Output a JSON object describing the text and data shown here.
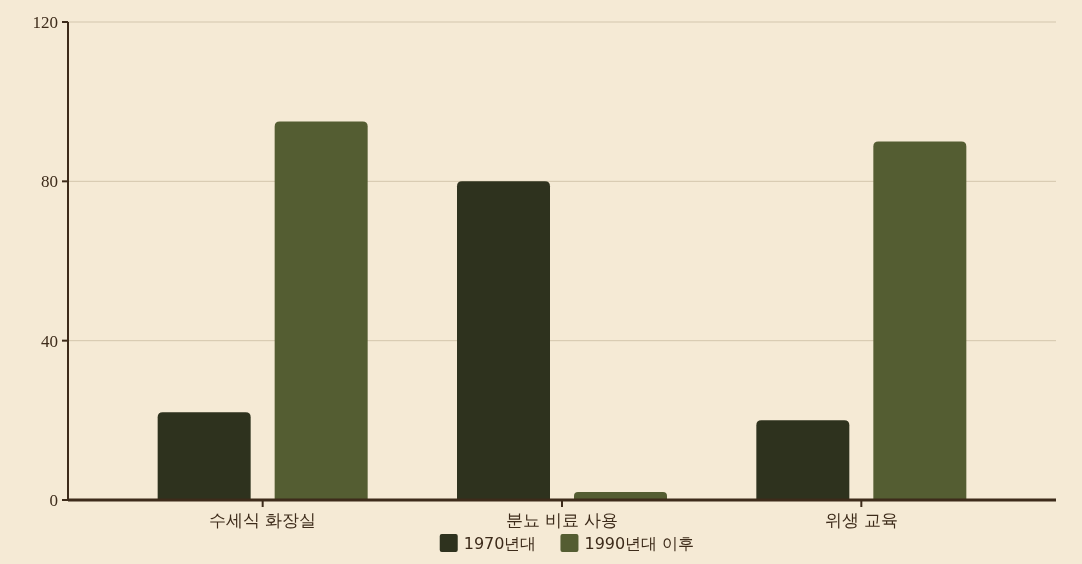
{
  "chart_data": {
    "type": "bar",
    "categories": [
      "수세식 화장실",
      "분뇨 비료 사용",
      "위생 교육"
    ],
    "series": [
      {
        "name": "1970년대",
        "color": "#2e321e",
        "values": [
          22,
          80,
          20
        ]
      },
      {
        "name": "1990년대 이후",
        "color": "#545d32",
        "values": [
          95,
          2,
          90
        ]
      }
    ],
    "ylim": [
      0,
      120
    ],
    "yticks": [
      0,
      40,
      80,
      120
    ],
    "grid": "y",
    "legend": "bottom"
  }
}
